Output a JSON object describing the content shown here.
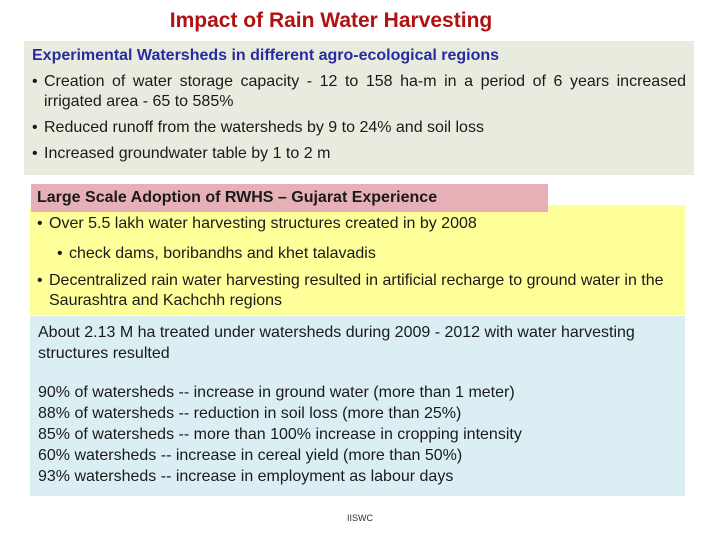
{
  "title": "Impact of Rain Water Harvesting",
  "experimental": {
    "heading": "Experimental Watersheds in different agro-ecological regions",
    "bullets": [
      "Creation of water storage capacity - 12 to 158 ha-m in a period of 6 years increased irrigated area - 65 to 585%",
      "Reduced runoff from the watersheds by 9 to 24% and soil loss",
      "Increased groundwater table by 1 to 2 m"
    ]
  },
  "gujarat": {
    "heading": "Large Scale Adoption of RWHS – Gujarat Experience",
    "bullet1": "Over 5.5 lakh water harvesting structures created in by 2008",
    "sub_bullet": "check dams, boribandhs and khet talavadis",
    "bullet2": "Decentralized rain water harvesting resulted in artificial recharge to ground water in the Saurashtra and Kachchh regions"
  },
  "watersheds": {
    "intro": "About  2.13 M ha treated under watersheds during 2009 - 2012 with water harvesting structures resulted",
    "results": [
      "90% of watersheds -- increase in ground water (more than 1 meter)",
      "88% of watersheds -- reduction in soil loss (more than 25%)",
      "85% of watersheds -- more than 100% increase in cropping intensity",
      "60% watersheds -- increase in cereal yield (more than 50%)",
      "93% watersheds -- increase in employment as labour days"
    ]
  },
  "footer": "IISWC",
  "colors": {
    "title": "#b01212",
    "heading": "#2a2aa0",
    "box1_bg": "#e8ecde",
    "box2_bg": "#ffff99",
    "pink_bg": "#e6b0b6",
    "box3_bg": "#dbeef4"
  }
}
